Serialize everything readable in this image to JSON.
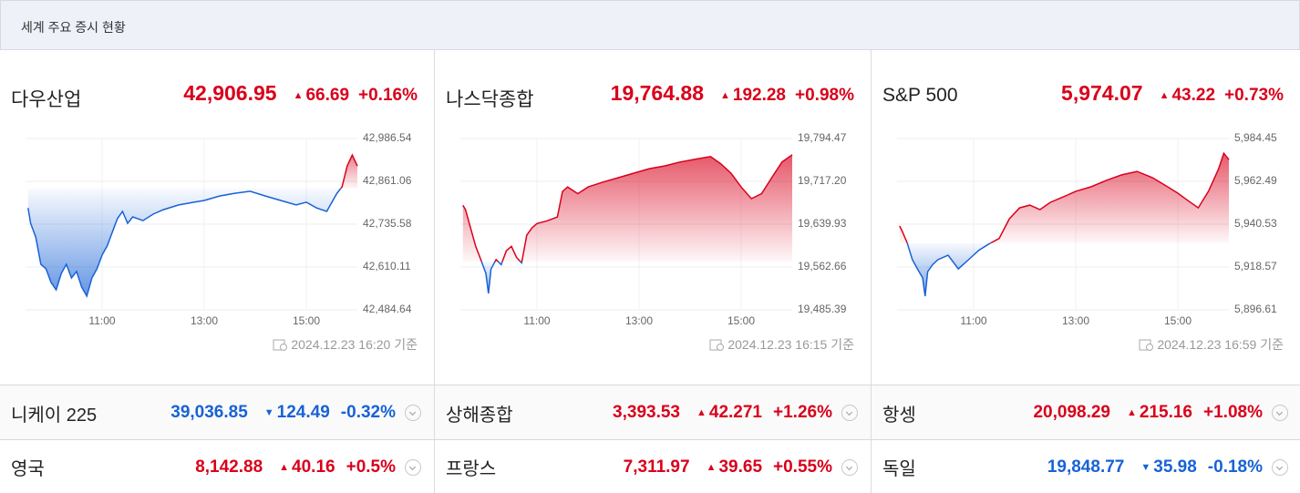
{
  "header": {
    "title": "세계 주요 증시 현황"
  },
  "colors": {
    "up": "#d9001b",
    "down": "#1862d6"
  },
  "chart_data": [
    {
      "type": "line",
      "title": "다우산업",
      "price": "42,906.95",
      "change": "66.69",
      "change_pct": "+0.16%",
      "direction": "up",
      "timestamp": "2024.12.23 16:20 기준",
      "grid": true,
      "baseline": 42840.26,
      "xlim": [
        9.5,
        16
      ],
      "xticks": [
        {
          "value": 11,
          "label": "11:00"
        },
        {
          "value": 13,
          "label": "13:00"
        },
        {
          "value": 15,
          "label": "15:00"
        }
      ],
      "ylim": [
        42484.64,
        42986.54
      ],
      "yticks": [
        {
          "value": 42484.64,
          "label": "42,484.64"
        },
        {
          "value": 42610.11,
          "label": "42,610.11"
        },
        {
          "value": 42735.58,
          "label": "42,735.58"
        },
        {
          "value": 42861.06,
          "label": "42,861.06"
        },
        {
          "value": 42986.54,
          "label": "42,986.54"
        }
      ],
      "x": [
        9.55,
        9.6,
        9.7,
        9.8,
        9.9,
        10.0,
        10.1,
        10.2,
        10.3,
        10.4,
        10.5,
        10.6,
        10.7,
        10.8,
        10.9,
        11.0,
        11.1,
        11.2,
        11.3,
        11.4,
        11.5,
        11.6,
        11.8,
        12.0,
        12.2,
        12.5,
        12.8,
        13.0,
        13.3,
        13.6,
        13.9,
        14.2,
        14.5,
        14.8,
        15.0,
        15.2,
        15.4,
        15.6,
        15.7,
        15.8,
        15.9,
        16.0
      ],
      "values": [
        42783,
        42738,
        42698,
        42618,
        42605,
        42565,
        42543,
        42591,
        42618,
        42578,
        42597,
        42551,
        42525,
        42578,
        42605,
        42645,
        42672,
        42712,
        42752,
        42773,
        42738,
        42757,
        42746,
        42765,
        42778,
        42792,
        42800,
        42805,
        42818,
        42826,
        42832,
        42818,
        42805,
        42792,
        42800,
        42783,
        42773,
        42826,
        42845,
        42906,
        42938,
        42906
      ]
    },
    {
      "type": "line",
      "title": "나스닥종합",
      "price": "19,764.88",
      "change": "192.28",
      "change_pct": "+0.98%",
      "direction": "up",
      "timestamp": "2024.12.23 16:15 기준",
      "grid": true,
      "baseline": 19572.6,
      "xlim": [
        9.5,
        16
      ],
      "xticks": [
        {
          "value": 11,
          "label": "11:00"
        },
        {
          "value": 13,
          "label": "13:00"
        },
        {
          "value": 15,
          "label": "15:00"
        }
      ],
      "ylim": [
        19485.39,
        19794.47
      ],
      "yticks": [
        {
          "value": 19485.39,
          "label": "19,485.39"
        },
        {
          "value": 19562.66,
          "label": "19,562.66"
        },
        {
          "value": 19639.93,
          "label": "19,639.93"
        },
        {
          "value": 19717.2,
          "label": "19,717.20"
        },
        {
          "value": 19794.47,
          "label": "19,794.47"
        }
      ],
      "x": [
        9.55,
        9.6,
        9.7,
        9.8,
        9.9,
        10.0,
        10.05,
        10.1,
        10.2,
        10.3,
        10.4,
        10.5,
        10.6,
        10.7,
        10.8,
        10.9,
        11.0,
        11.2,
        11.4,
        11.5,
        11.6,
        11.8,
        12.0,
        12.3,
        12.6,
        12.9,
        13.2,
        13.5,
        13.8,
        14.1,
        14.4,
        14.6,
        14.8,
        15.0,
        15.2,
        15.4,
        15.6,
        15.8,
        16.0
      ],
      "values": [
        19674,
        19666,
        19633,
        19600,
        19576,
        19551,
        19515,
        19559,
        19576,
        19567,
        19592,
        19600,
        19580,
        19570,
        19620,
        19633,
        19641,
        19646,
        19653,
        19699,
        19707,
        19695,
        19707,
        19716,
        19724,
        19732,
        19740,
        19745,
        19752,
        19757,
        19762,
        19749,
        19732,
        19707,
        19686,
        19695,
        19724,
        19752,
        19765
      ]
    },
    {
      "type": "line",
      "title": "S&P 500",
      "price": "5,974.07",
      "change": "43.22",
      "change_pct": "+0.73%",
      "direction": "up",
      "timestamp": "2024.12.23 16:59 기준",
      "grid": true,
      "baseline": 5930.85,
      "xlim": [
        9.5,
        16
      ],
      "xticks": [
        {
          "value": 11,
          "label": "11:00"
        },
        {
          "value": 13,
          "label": "13:00"
        },
        {
          "value": 15,
          "label": "15:00"
        }
      ],
      "ylim": [
        5896.61,
        5984.45
      ],
      "yticks": [
        {
          "value": 5896.61,
          "label": "5,896.61"
        },
        {
          "value": 5918.57,
          "label": "5,918.57"
        },
        {
          "value": 5940.53,
          "label": "5,940.53"
        },
        {
          "value": 5962.49,
          "label": "5,962.49"
        },
        {
          "value": 5984.45,
          "label": "5,984.45"
        }
      ],
      "x": [
        9.55,
        9.6,
        9.7,
        9.8,
        9.9,
        10.0,
        10.05,
        10.1,
        10.2,
        10.3,
        10.5,
        10.7,
        10.9,
        11.1,
        11.3,
        11.5,
        11.7,
        11.9,
        12.1,
        12.3,
        12.5,
        12.8,
        13.0,
        13.3,
        13.6,
        13.9,
        14.2,
        14.5,
        14.8,
        15.0,
        15.2,
        15.4,
        15.6,
        15.8,
        15.9,
        16.0
      ],
      "values": [
        5939.6,
        5937.0,
        5930.8,
        5922.3,
        5917.6,
        5913.0,
        5903.6,
        5916.2,
        5919.9,
        5922.3,
        5924.6,
        5917.6,
        5922.3,
        5927.1,
        5930.4,
        5933.2,
        5943.3,
        5948.9,
        5950.3,
        5948.0,
        5951.7,
        5955.0,
        5957.4,
        5959.7,
        5963.0,
        5965.8,
        5967.6,
        5964.4,
        5959.7,
        5956.4,
        5952.6,
        5948.9,
        5957.4,
        5969.0,
        5976.9,
        5973.6
      ]
    }
  ],
  "markets": [
    {
      "name": "니케이 225",
      "price": "39,036.85",
      "change": "124.49",
      "change_pct": "-0.32%",
      "direction": "down"
    },
    {
      "name": "상해종합",
      "price": "3,393.53",
      "change": "42.271",
      "change_pct": "+1.26%",
      "direction": "up"
    },
    {
      "name": "항셍",
      "price": "20,098.29",
      "change": "215.16",
      "change_pct": "+1.08%",
      "direction": "up"
    },
    {
      "name": "영국",
      "price": "8,142.88",
      "change": "40.16",
      "change_pct": "+0.5%",
      "direction": "up"
    },
    {
      "name": "프랑스",
      "price": "7,311.97",
      "change": "39.65",
      "change_pct": "+0.55%",
      "direction": "up"
    },
    {
      "name": "독일",
      "price": "19,848.77",
      "change": "35.98",
      "change_pct": "-0.18%",
      "direction": "down"
    }
  ]
}
